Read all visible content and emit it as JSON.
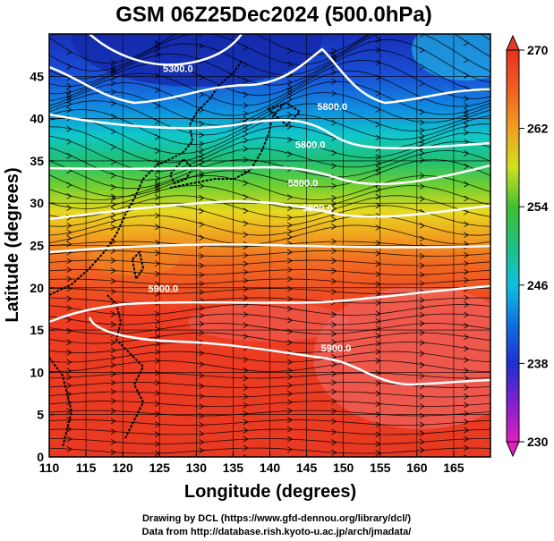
{
  "title": "GSM 06Z25Dec2024 (500.0hPa)",
  "axes": {
    "xlabel": "Longitude (degrees)",
    "ylabel": "Latitude  (degrees)",
    "x_range": [
      110,
      170
    ],
    "y_range": [
      0,
      50
    ],
    "x_ticks": [
      "110",
      "115",
      "120",
      "125",
      "130",
      "135",
      "140",
      "145",
      "150",
      "155",
      "160",
      "165"
    ],
    "y_ticks": [
      "0",
      "5",
      "10",
      "15",
      "20",
      "25",
      "30",
      "35",
      "40",
      "45"
    ],
    "grid": true
  },
  "colorbar": {
    "min": 230,
    "max": 270,
    "ticks": [
      "230",
      "238",
      "246",
      "254",
      "262",
      "270"
    ],
    "orientation": "vertical",
    "placement": "right"
  },
  "contour_labels": [
    {
      "text": "5300.0",
      "lon": 127.5,
      "lat": 45.5
    },
    {
      "text": "5800.0",
      "lon": 148.5,
      "lat": 41.0
    },
    {
      "text": "5800.0",
      "lon": 145.5,
      "lat": 36.5
    },
    {
      "text": "5800.0",
      "lon": 144.5,
      "lat": 32.0
    },
    {
      "text": "5800.0",
      "lon": 146.5,
      "lat": 29.0
    },
    {
      "text": "5900.0",
      "lon": 125.5,
      "lat": 19.5
    },
    {
      "text": "5900.0",
      "lon": 149.0,
      "lat": 12.5
    }
  ],
  "credits": {
    "drawing": "Drawing by DCL (https://www.gfd-dennou.org/library/dcl/)",
    "data": "Data from http://database.rish.kyoto-u.ac.jp/arch/jmadata/"
  },
  "colors": {
    "warm_red": "#e8402a",
    "orange": "#f08a20",
    "yellow": "#f0e020",
    "green": "#30c030",
    "cyan": "#20d0e0",
    "blue": "#2040d0",
    "magenta": "#e030c0",
    "contour": "#ffffff",
    "coast": "#000000"
  }
}
